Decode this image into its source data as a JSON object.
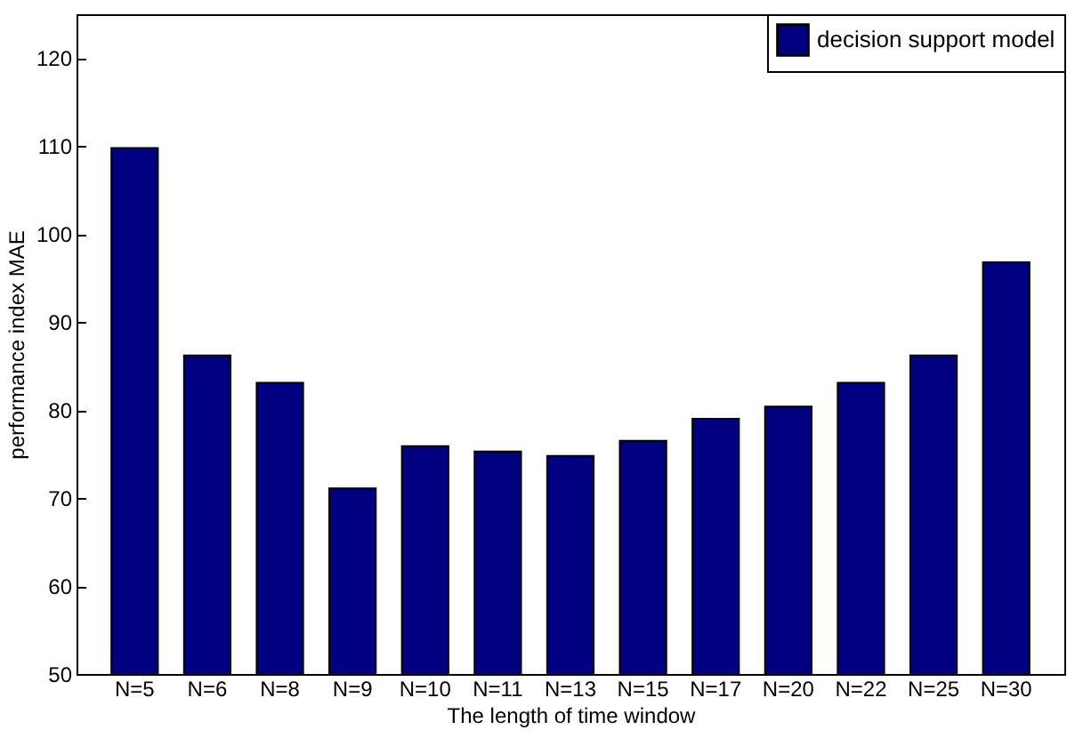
{
  "chart_data": {
    "type": "bar",
    "xlabel": "The length of time window",
    "ylabel": "performance index MAE",
    "categories": [
      "N=5",
      "N=6",
      "N=8",
      "N=9",
      "N=10",
      "N=11",
      "N=13",
      "N=15",
      "N=17",
      "N=20",
      "N=22",
      "N=25",
      "N=30"
    ],
    "series": [
      {
        "name": "decision support model",
        "color": "#000080",
        "values": [
          109.8,
          86.2,
          83.1,
          71.1,
          75.9,
          75.3,
          74.8,
          76.5,
          79.0,
          80.4,
          83.1,
          86.2,
          96.8
        ]
      }
    ],
    "ylim": [
      50,
      125
    ],
    "yticks": [
      50,
      60,
      70,
      80,
      90,
      100,
      110,
      120
    ],
    "grid": false,
    "legend": "top right"
  }
}
